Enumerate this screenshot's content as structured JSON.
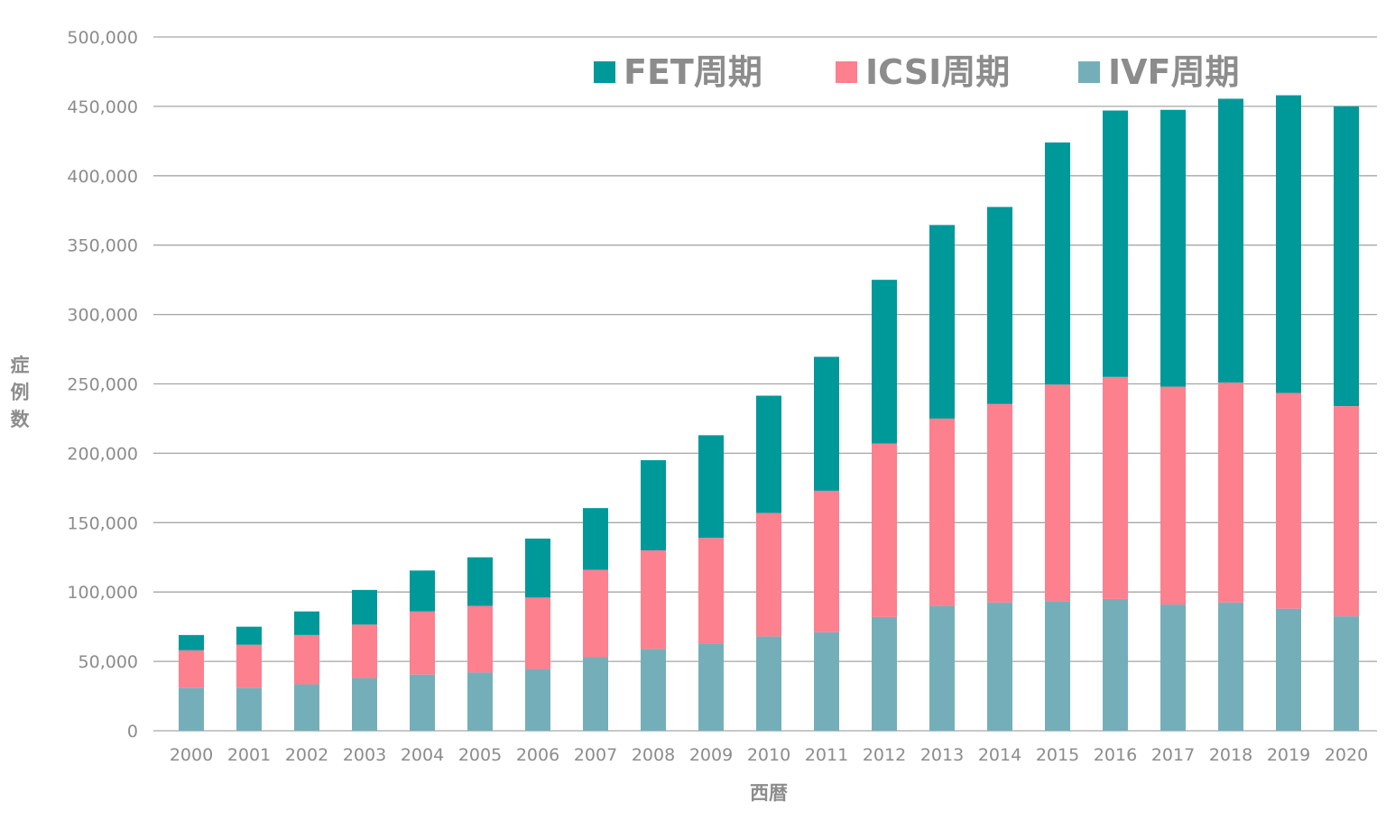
{
  "chart_data": {
    "type": "bar",
    "stacked": true,
    "title": "",
    "xlabel": "西暦",
    "ylabel": "症例数",
    "ylim": [
      0,
      500000
    ],
    "yticks": [
      0,
      50000,
      100000,
      150000,
      200000,
      250000,
      300000,
      350000,
      400000,
      450000,
      500000
    ],
    "ytick_labels": [
      "0",
      "50,000",
      "100,000",
      "150,000",
      "200,000",
      "250,000",
      "300,000",
      "350,000",
      "400,000",
      "450,000",
      "500,000"
    ],
    "grid": true,
    "legend_position": "top",
    "categories": [
      "2000",
      "2001",
      "2002",
      "2003",
      "2004",
      "2005",
      "2006",
      "2007",
      "2008",
      "2009",
      "2010",
      "2011",
      "2012",
      "2013",
      "2014",
      "2015",
      "2016",
      "2017",
      "2018",
      "2019",
      "2020"
    ],
    "series": [
      {
        "name": "IVF周期",
        "color": "#74afb9",
        "values": [
          31000,
          31000,
          33500,
          38000,
          40500,
          42000,
          44500,
          53000,
          59000,
          63000,
          68000,
          71000,
          82000,
          90000,
          92500,
          93500,
          95000,
          91000,
          92500,
          88000,
          82500
        ]
      },
      {
        "name": "ICSI周期",
        "color": "#fc808e",
        "values": [
          27000,
          31000,
          35500,
          38500,
          45500,
          48000,
          51500,
          63000,
          71000,
          76000,
          89000,
          102000,
          125000,
          135000,
          143000,
          156000,
          160000,
          157000,
          158500,
          155500,
          151500
        ]
      },
      {
        "name": "FET周期",
        "color": "#00999a",
        "values": [
          11000,
          13000,
          17000,
          25000,
          29500,
          35000,
          42500,
          44500,
          65000,
          74000,
          84500,
          96500,
          118000,
          139500,
          142000,
          174500,
          192000,
          199500,
          204500,
          214500,
          216000
        ]
      }
    ],
    "legend_order": [
      "FET周期",
      "ICSI周期",
      "IVF周期"
    ]
  }
}
